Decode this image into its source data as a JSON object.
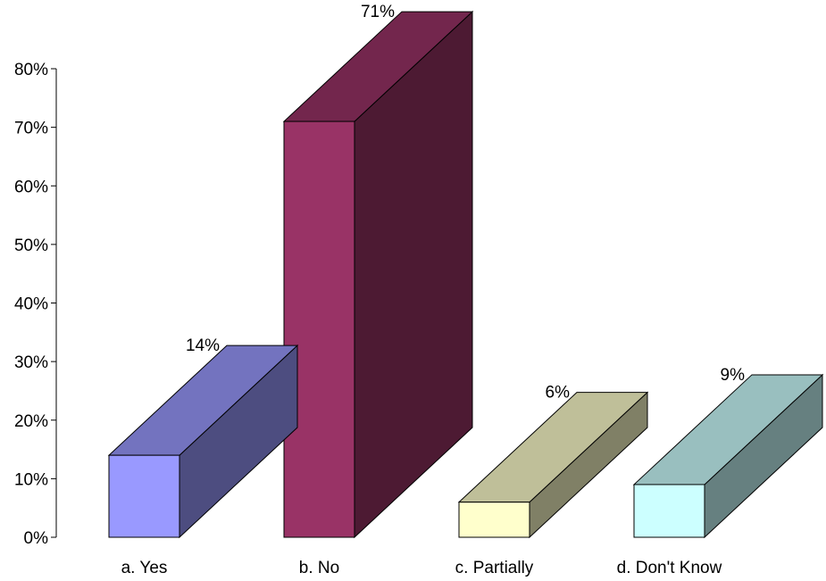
{
  "chart_data": {
    "type": "bar",
    "style": "3d",
    "categories": [
      "a. Yes",
      "b. No",
      "c. Partially",
      "d. Don't Know"
    ],
    "values": [
      14,
      71,
      6,
      9
    ],
    "data_labels": [
      "14%",
      "71%",
      "6%",
      "9%"
    ],
    "colors": [
      "#9999ff",
      "#993366",
      "#ffffcc",
      "#ccffff"
    ],
    "ylim": [
      0,
      80
    ],
    "yticks": [
      0,
      10,
      20,
      30,
      40,
      50,
      60,
      70,
      80
    ],
    "ytick_labels": [
      "0%",
      "10%",
      "20%",
      "30%",
      "40%",
      "50%",
      "60%",
      "70%",
      "80%"
    ],
    "title": "",
    "xlabel": "",
    "ylabel": "",
    "grid": false,
    "legend": "none"
  }
}
